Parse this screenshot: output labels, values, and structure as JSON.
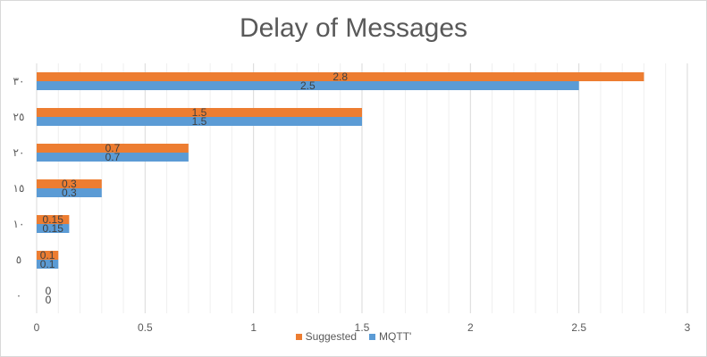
{
  "chart_data": {
    "type": "bar",
    "orientation": "horizontal",
    "title": "Delay of Messages",
    "categories": [
      "٠",
      "٥",
      "١٠",
      "١٥",
      "٢٠",
      "٢٥",
      "٣٠"
    ],
    "series": [
      {
        "name": "Suggested",
        "color": "#ED7D31",
        "values": [
          0,
          0.1,
          0.15,
          0.3,
          0.7,
          1.5,
          2.8
        ]
      },
      {
        "name": "MQTT'",
        "color": "#5B9BD5",
        "values": [
          0,
          0.1,
          0.15,
          0.3,
          0.7,
          1.5,
          2.5
        ]
      }
    ],
    "xlim": [
      0,
      3
    ],
    "x_ticks": [
      "0",
      "0.5",
      "1",
      "1.5",
      "2",
      "2.5",
      "3"
    ],
    "grid": true,
    "legend_position": "bottom",
    "data_labels": true
  }
}
